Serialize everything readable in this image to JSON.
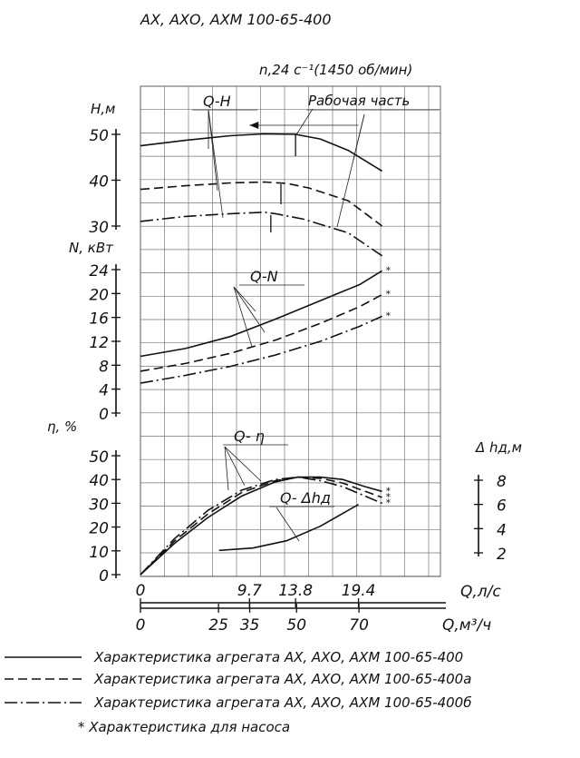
{
  "title": "АХ, АХО, АХМ 100-65-400",
  "speed_label": "n,24 с⁻¹(1450 об/мин)",
  "work_zone_label": "Рабочая часть",
  "legend": [
    {
      "style": "solid",
      "label": "Характеристика агрегата АХ, АХО, АХМ 100-65-400"
    },
    {
      "style": "dashed",
      "label": "Характеристика агрегата АХ, АХО, АХМ 100-65-400а"
    },
    {
      "style": "dashdot",
      "label": "Характеристика агрегата АХ, АХО, АХМ 100-65-400б"
    }
  ],
  "footnote": "* Характеристика для насоса",
  "chart_data": {
    "type": "line",
    "x_axis_ls": {
      "label": "Q,л/с",
      "ticks": [
        0,
        9.7,
        13.8,
        19.4
      ]
    },
    "x_axis_m3h": {
      "label": "Q,м³/ч",
      "ticks": [
        0,
        25,
        35,
        50,
        70
      ]
    },
    "panels": [
      {
        "name": "Q-H",
        "ylabel": "H,м",
        "ylim": [
          30,
          50
        ],
        "yticks": [
          30,
          40,
          50
        ],
        "work_zone_q": [
          9.7,
          19.4
        ],
        "series": [
          {
            "style": "solid",
            "x": [
              0,
              4,
              8,
              11,
              13.8,
              16,
              18.5,
              21.5
            ],
            "y": [
              47.5,
              48.7,
              49.7,
              50.1,
              50,
              49,
              46.5,
              42
            ]
          },
          {
            "style": "dashed",
            "x": [
              0,
              4,
              8,
              11,
              13,
              15,
              18.5,
              21.5
            ],
            "y": [
              38,
              38.8,
              39.4,
              39.6,
              39.3,
              38.3,
              35.5,
              30
            ]
          },
          {
            "style": "dashdot",
            "x": [
              0,
              4,
              8,
              11,
              12,
              14.5,
              18.5,
              21.5
            ],
            "y": [
              31,
              32.1,
              32.7,
              33,
              32.7,
              31.5,
              28.5,
              23.5
            ]
          }
        ]
      },
      {
        "name": "Q-N",
        "ylabel": "N, кВт",
        "ylim": [
          0,
          24
        ],
        "yticks": [
          0,
          4,
          8,
          12,
          16,
          20,
          24
        ],
        "series": [
          {
            "style": "solid",
            "x": [
              0,
              4,
              8,
              12,
              16,
              19.5,
              21.5
            ],
            "y": [
              9.5,
              10.8,
              12.8,
              15.7,
              18.8,
              21.5,
              23.8
            ]
          },
          {
            "style": "dashed",
            "x": [
              0,
              4,
              8,
              12,
              16,
              19.5,
              21.5
            ],
            "y": [
              7,
              8.3,
              10,
              12.2,
              15,
              17.8,
              19.8
            ]
          },
          {
            "style": "dashdot",
            "x": [
              0,
              4,
              8,
              12,
              16,
              19.5,
              21.5
            ],
            "y": [
              5,
              6.3,
              7.8,
              9.7,
              12,
              14.5,
              16.2
            ]
          }
        ]
      },
      {
        "name": "Q- η",
        "ylabel": "η, %",
        "ylim": [
          0,
          50
        ],
        "yticks": [
          0,
          10,
          20,
          30,
          40,
          50
        ],
        "series": [
          {
            "style": "solid",
            "x": [
              0,
              3,
              6,
              9,
              12,
              14,
              16,
              18,
              20,
              21.5
            ],
            "y": [
              0,
              13,
              24,
              33,
              39,
              41,
              41,
              40,
              37,
              35
            ]
          },
          {
            "style": "dashed",
            "x": [
              0,
              3,
              6,
              9,
              12,
              14,
              16,
              18,
              20,
              21.5
            ],
            "y": [
              0,
              14,
              25.5,
              34.5,
              39.5,
              41,
              40.5,
              38.5,
              35,
              32.5
            ]
          },
          {
            "style": "dashdot",
            "x": [
              0,
              3,
              6,
              9,
              12,
              14,
              16,
              18,
              20,
              21.5
            ],
            "y": [
              0,
              15,
              27,
              35.5,
              40,
              41,
              39.5,
              37,
              33,
              30
            ]
          }
        ]
      },
      {
        "name": "Q- Δhд",
        "ylabel": "Δ hд,м",
        "ylim": [
          2,
          8
        ],
        "yticks": [
          2,
          4,
          6,
          8
        ],
        "series": [
          {
            "style": "solid",
            "x": [
              7,
              10,
              13,
              16,
              19.4
            ],
            "y": [
              2.2,
              2.4,
              3,
              4.2,
              6
            ]
          }
        ]
      }
    ]
  }
}
